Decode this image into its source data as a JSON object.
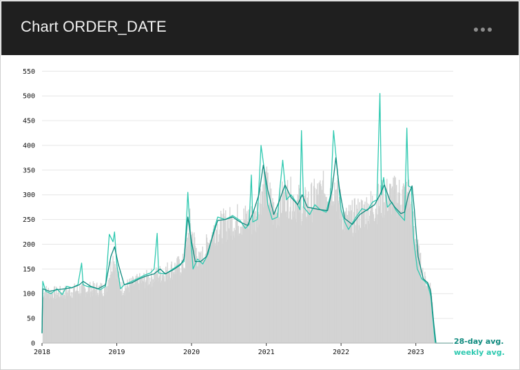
{
  "app": {
    "title": "Chart ORDER_DATE"
  },
  "colors": {
    "header_bg": "#1f1f1f",
    "bars": "#d3d3d3",
    "weekly": "#2ec9b0",
    "monthly": "#0f8a7e",
    "grid": "#e6e6e6"
  },
  "chart_data": {
    "type": "bar",
    "ylim": [
      0,
      570
    ],
    "yticks": [
      0,
      50,
      100,
      150,
      200,
      250,
      300,
      350,
      400,
      450,
      500,
      550
    ],
    "xticks": [
      "2018",
      "2019",
      "2020",
      "2021",
      "2022",
      "2023"
    ],
    "series": [
      {
        "name": "weekly avg.",
        "values": [
          [
            2018.0,
            20
          ],
          [
            2018.01,
            125
          ],
          [
            2018.05,
            105
          ],
          [
            2018.12,
            100
          ],
          [
            2018.2,
            110
          ],
          [
            2018.27,
            98
          ],
          [
            2018.33,
            115
          ],
          [
            2018.4,
            112
          ],
          [
            2018.48,
            118
          ],
          [
            2018.53,
            162
          ],
          [
            2018.55,
            118
          ],
          [
            2018.6,
            115
          ],
          [
            2018.7,
            112
          ],
          [
            2018.78,
            108
          ],
          [
            2018.85,
            115
          ],
          [
            2018.9,
            220
          ],
          [
            2018.95,
            205
          ],
          [
            2018.97,
            225
          ],
          [
            2019.0,
            160
          ],
          [
            2019.05,
            110
          ],
          [
            2019.1,
            118
          ],
          [
            2019.2,
            125
          ],
          [
            2019.3,
            132
          ],
          [
            2019.38,
            138
          ],
          [
            2019.45,
            142
          ],
          [
            2019.5,
            150
          ],
          [
            2019.54,
            222
          ],
          [
            2019.56,
            142
          ],
          [
            2019.65,
            140
          ],
          [
            2019.75,
            150
          ],
          [
            2019.85,
            160
          ],
          [
            2019.9,
            165
          ],
          [
            2019.93,
            240
          ],
          [
            2019.95,
            305
          ],
          [
            2019.98,
            230
          ],
          [
            2020.02,
            150
          ],
          [
            2020.08,
            170
          ],
          [
            2020.15,
            160
          ],
          [
            2020.22,
            180
          ],
          [
            2020.3,
            230
          ],
          [
            2020.35,
            255
          ],
          [
            2020.45,
            250
          ],
          [
            2020.55,
            258
          ],
          [
            2020.65,
            248
          ],
          [
            2020.72,
            232
          ],
          [
            2020.77,
            240
          ],
          [
            2020.8,
            340
          ],
          [
            2020.82,
            245
          ],
          [
            2020.88,
            250
          ],
          [
            2020.93,
            400
          ],
          [
            2020.97,
            355
          ],
          [
            2021.02,
            280
          ],
          [
            2021.08,
            250
          ],
          [
            2021.15,
            255
          ],
          [
            2021.18,
            310
          ],
          [
            2021.22,
            370
          ],
          [
            2021.27,
            290
          ],
          [
            2021.33,
            300
          ],
          [
            2021.4,
            285
          ],
          [
            2021.45,
            270
          ],
          [
            2021.47,
            430
          ],
          [
            2021.5,
            275
          ],
          [
            2021.58,
            260
          ],
          [
            2021.65,
            280
          ],
          [
            2021.72,
            270
          ],
          [
            2021.8,
            265
          ],
          [
            2021.86,
            300
          ],
          [
            2021.9,
            430
          ],
          [
            2021.95,
            350
          ],
          [
            2022.0,
            270
          ],
          [
            2022.05,
            245
          ],
          [
            2022.1,
            230
          ],
          [
            2022.2,
            255
          ],
          [
            2022.28,
            272
          ],
          [
            2022.35,
            268
          ],
          [
            2022.42,
            285
          ],
          [
            2022.48,
            290
          ],
          [
            2022.52,
            505
          ],
          [
            2022.54,
            300
          ],
          [
            2022.57,
            335
          ],
          [
            2022.62,
            275
          ],
          [
            2022.68,
            285
          ],
          [
            2022.73,
            270
          ],
          [
            2022.78,
            260
          ],
          [
            2022.85,
            248
          ],
          [
            2022.88,
            435
          ],
          [
            2022.9,
            318
          ],
          [
            2022.94,
            315
          ],
          [
            2022.97,
            210
          ],
          [
            2023.02,
            150
          ],
          [
            2023.08,
            130
          ],
          [
            2023.12,
            125
          ],
          [
            2023.16,
            118
          ],
          [
            2023.2,
            95
          ],
          [
            2023.24,
            30
          ],
          [
            2023.26,
            0
          ],
          [
            2023.5,
            0
          ]
        ]
      },
      {
        "name": "28-day avg.",
        "values": [
          [
            2018.0,
            20
          ],
          [
            2018.01,
            110
          ],
          [
            2018.1,
            105
          ],
          [
            2018.2,
            108
          ],
          [
            2018.3,
            110
          ],
          [
            2018.4,
            112
          ],
          [
            2018.5,
            118
          ],
          [
            2018.55,
            125
          ],
          [
            2018.65,
            115
          ],
          [
            2018.75,
            110
          ],
          [
            2018.85,
            118
          ],
          [
            2018.92,
            175
          ],
          [
            2018.97,
            195
          ],
          [
            2019.02,
            160
          ],
          [
            2019.1,
            118
          ],
          [
            2019.2,
            122
          ],
          [
            2019.3,
            130
          ],
          [
            2019.4,
            136
          ],
          [
            2019.5,
            140
          ],
          [
            2019.58,
            150
          ],
          [
            2019.65,
            140
          ],
          [
            2019.75,
            148
          ],
          [
            2019.85,
            158
          ],
          [
            2019.9,
            170
          ],
          [
            2019.95,
            255
          ],
          [
            2020.0,
            205
          ],
          [
            2020.05,
            165
          ],
          [
            2020.12,
            165
          ],
          [
            2020.2,
            175
          ],
          [
            2020.28,
            215
          ],
          [
            2020.35,
            248
          ],
          [
            2020.45,
            250
          ],
          [
            2020.55,
            255
          ],
          [
            2020.65,
            245
          ],
          [
            2020.75,
            238
          ],
          [
            2020.82,
            262
          ],
          [
            2020.9,
            300
          ],
          [
            2020.96,
            360
          ],
          [
            2021.02,
            310
          ],
          [
            2021.1,
            260
          ],
          [
            2021.18,
            290
          ],
          [
            2021.25,
            320
          ],
          [
            2021.33,
            295
          ],
          [
            2021.42,
            280
          ],
          [
            2021.48,
            300
          ],
          [
            2021.55,
            275
          ],
          [
            2021.65,
            272
          ],
          [
            2021.72,
            270
          ],
          [
            2021.82,
            268
          ],
          [
            2021.88,
            310
          ],
          [
            2021.93,
            375
          ],
          [
            2021.98,
            310
          ],
          [
            2022.05,
            252
          ],
          [
            2022.15,
            240
          ],
          [
            2022.25,
            260
          ],
          [
            2022.35,
            270
          ],
          [
            2022.45,
            280
          ],
          [
            2022.52,
            300
          ],
          [
            2022.58,
            320
          ],
          [
            2022.65,
            290
          ],
          [
            2022.72,
            275
          ],
          [
            2022.8,
            262
          ],
          [
            2022.85,
            265
          ],
          [
            2022.9,
            300
          ],
          [
            2022.95,
            318
          ],
          [
            2022.98,
            270
          ],
          [
            2023.03,
            175
          ],
          [
            2023.1,
            130
          ],
          [
            2023.16,
            122
          ],
          [
            2023.2,
            105
          ],
          [
            2023.24,
            40
          ],
          [
            2023.27,
            0
          ],
          [
            2023.5,
            0
          ]
        ]
      }
    ],
    "bars_envelope": [
      [
        2018.0,
        0
      ],
      [
        2018.01,
        105
      ],
      [
        2018.2,
        100
      ],
      [
        2018.5,
        108
      ],
      [
        2018.85,
        110
      ],
      [
        2018.95,
        175
      ],
      [
        2019.05,
        110
      ],
      [
        2019.5,
        135
      ],
      [
        2019.9,
        160
      ],
      [
        2019.97,
        240
      ],
      [
        2020.1,
        160
      ],
      [
        2020.3,
        230
      ],
      [
        2020.6,
        248
      ],
      [
        2020.85,
        250
      ],
      [
        2020.97,
        330
      ],
      [
        2021.1,
        258
      ],
      [
        2021.25,
        300
      ],
      [
        2021.5,
        275
      ],
      [
        2021.9,
        320
      ],
      [
        2022.05,
        245
      ],
      [
        2022.4,
        275
      ],
      [
        2022.6,
        295
      ],
      [
        2022.9,
        300
      ],
      [
        2023.0,
        200
      ],
      [
        2023.1,
        130
      ],
      [
        2023.2,
        110
      ],
      [
        2023.25,
        0
      ]
    ],
    "legend": [
      "28-day avg.",
      "weekly avg."
    ]
  }
}
